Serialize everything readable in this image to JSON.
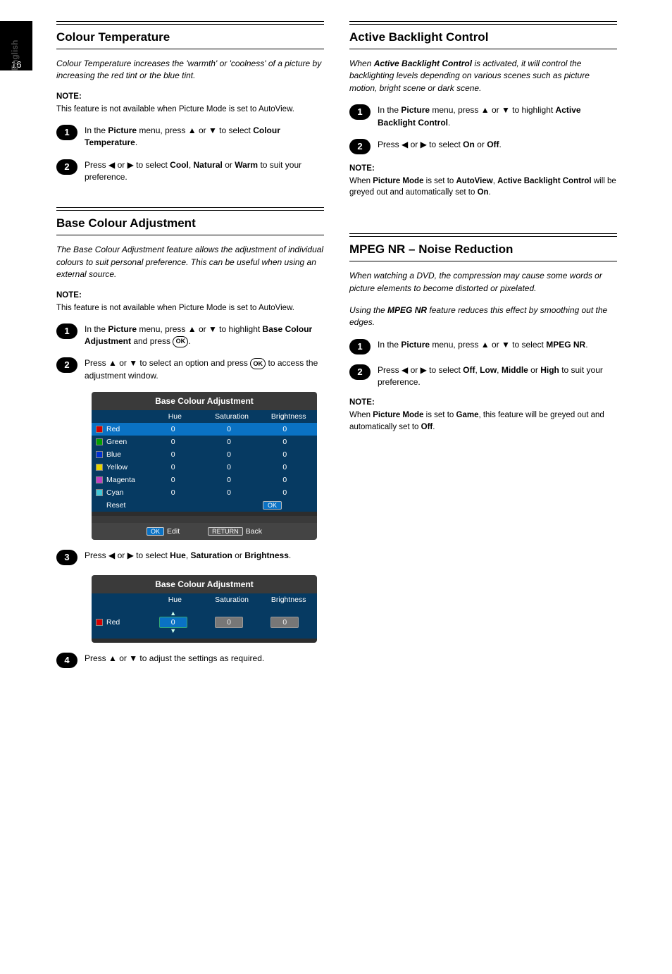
{
  "page": {
    "number": "16",
    "side_label": "English"
  },
  "left": {
    "sec1": {
      "title": "Colour Temperature",
      "desc_html": "Colour Temperature increases the 'warmth' or 'coolness' of a picture by increasing the red tint or the blue tint.",
      "note_head": "NOTE:",
      "note_body": "This feature is not available when Picture Mode is set to AutoView.",
      "step1_html": "In the Picture menu, press ▲ or ▼ to select Colour Temperature.",
      "step2_html": "Press ◀ or ▶ to select Cool, Natural or Warm to suit your preference."
    },
    "sec2": {
      "title": "Base Colour Adjustment",
      "desc_html": "The Base Colour Adjustment feature allows the adjustment of individual colours to suit personal preference. This can be useful when using an external source.",
      "note_head": "NOTE:",
      "note_body": "This feature is not available when Picture Mode is set to AutoView.",
      "step1_html": "In the Picture menu, press ▲ or ▼ to highlight Base Colour Adjustment and press OK.",
      "step2_html": "Press ▲ or ▼ to select an option and press OK to access the adjustment window.",
      "step3_html": "Press ◀ or ▶ to select Hue, Saturation or Brightness.",
      "step4_html": "Press ▲ or ▼ to adjust the settings as required.",
      "menu": {
        "title": "Base Colour Adjustment",
        "cols": [
          "Hue",
          "Saturation",
          "Brightness"
        ],
        "rows": [
          {
            "name": "Red",
            "swatch": "#d40000",
            "vals": [
              "0",
              "0",
              "0"
            ],
            "sel": true
          },
          {
            "name": "Green",
            "swatch": "#00a000",
            "vals": [
              "0",
              "0",
              "0"
            ],
            "sel": false
          },
          {
            "name": "Blue",
            "swatch": "#0030d0",
            "vals": [
              "0",
              "0",
              "0"
            ],
            "sel": false
          },
          {
            "name": "Yellow",
            "swatch": "#e6d400",
            "vals": [
              "0",
              "0",
              "0"
            ],
            "sel": false
          },
          {
            "name": "Magenta",
            "swatch": "#c040c0",
            "vals": [
              "0",
              "0",
              "0"
            ],
            "sel": false
          },
          {
            "name": "Cyan",
            "swatch": "#40c8d8",
            "vals": [
              "0",
              "0",
              "0"
            ],
            "sel": false
          }
        ],
        "reset_label": "Reset",
        "reset_ok": "OK",
        "foot_ok": "OK",
        "foot_edit": "Edit",
        "foot_return": "RETURN",
        "foot_back": "Back"
      },
      "edit": {
        "title": "Base Colour Adjustment",
        "cols": [
          "Hue",
          "Saturation",
          "Brightness"
        ],
        "row_name": "Red",
        "row_swatch": "#d40000",
        "vals": [
          "0",
          "0",
          "0"
        ]
      }
    }
  },
  "right": {
    "sec1": {
      "title": "Active Backlight Control",
      "desc_html": "When Active Backlight Control is activated, it will control the backlighting levels depending on various scenes such as picture motion, bright scene or dark scene.",
      "step1_html": "In the Picture menu, press ▲ or ▼ to highlight Active Backlight Control.",
      "step2_html": "Press ◀ or ▶ to select On or Off.",
      "note_head": "NOTE:",
      "note_body": "When Picture Mode is set to AutoView, Active Backlight Control will be greyed out and automatically set to On."
    },
    "sec2": {
      "title": "MPEG NR – Noise Reduction",
      "desc_html": "When watching a DVD, the compression may cause some words or picture elements to become distorted or pixelated.",
      "desc2_html": "Using the MPEG NR feature reduces this effect by smoothing out the edges.",
      "step1_html": "In the Picture menu, press ▲ or ▼ to select MPEG NR.",
      "step2_html": "Press ◀ or ▶ to select Off, Low, Middle or High to suit your preference.",
      "note_head": "NOTE:",
      "note_body": "When Picture Mode is set to Game, this feature will be greyed out and automatically set to Off."
    }
  }
}
